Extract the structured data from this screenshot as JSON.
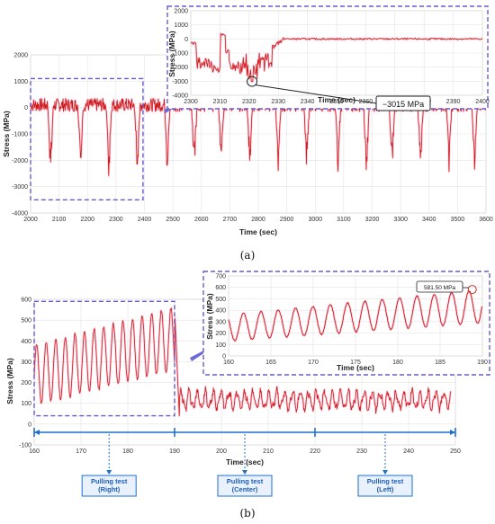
{
  "chart_data": [
    {
      "id": "a",
      "type": "line",
      "panel_label": "(a)",
      "xlabel": "Time (sec)",
      "ylabel": "Stress (MPa)",
      "xlim": [
        2000,
        3600
      ],
      "ylim": [
        -4000,
        2000
      ],
      "x_ticks": [
        "2000",
        "2100",
        "2200",
        "2300",
        "2400",
        "2500",
        "2600",
        "2700",
        "2800",
        "2900",
        "3000",
        "3100",
        "3200",
        "3300",
        "3400",
        "3500",
        "3600"
      ],
      "y_ticks": [
        "2000",
        "1000",
        "0",
        "-1000",
        "-2000",
        "-3000",
        "-4000"
      ],
      "grid": true,
      "series": [
        {
          "baseline": 100,
          "events": [
            {
              "x": 2070,
              "min": -2900
            },
            {
              "x": 2175,
              "min": -2700
            },
            {
              "x": 2275,
              "min": -2950
            },
            {
              "x": 2375,
              "min": -2850
            },
            {
              "x": 2480,
              "min": -2800
            },
            {
              "x": 2575,
              "min": -2600
            },
            {
              "x": 2670,
              "min": -2450
            },
            {
              "x": 2770,
              "min": -2550
            },
            {
              "x": 2870,
              "min": -2650
            },
            {
              "x": 2970,
              "min": -2500
            },
            {
              "x": 3080,
              "min": -2600
            },
            {
              "x": 3180,
              "min": -3015
            },
            {
              "x": 3270,
              "min": -2550
            },
            {
              "x": 3370,
              "min": -2450
            },
            {
              "x": 3470,
              "min": -2500
            },
            {
              "x": 3560,
              "min": -2550
            }
          ]
        }
      ],
      "inset": {
        "xlabel": "Time (sec)",
        "ylabel": "Stress (MPa)",
        "xlim": [
          2300,
          2400
        ],
        "ylim": [
          -4000,
          2000
        ],
        "x_ticks": [
          "2300",
          "2310",
          "2320",
          "2330",
          "2340",
          "2350",
          "2360",
          "2370",
          "2380",
          "2390",
          "2400"
        ],
        "y_ticks": [
          "2000",
          "1000",
          "0",
          "-1000",
          "-2000",
          "-3000",
          "-4000"
        ],
        "annotation": "−3015 MPa",
        "annotation_point": {
          "x": 2321,
          "y": -3015
        }
      }
    },
    {
      "id": "b",
      "type": "line",
      "panel_label": "(b)",
      "xlabel": "Time (sec)",
      "ylabel": "Stress (MPa)",
      "xlim": [
        160,
        250
      ],
      "ylim": [
        -100,
        600
      ],
      "x_ticks": [
        "160",
        "170",
        "180",
        "190",
        "200",
        "210",
        "220",
        "230",
        "240",
        "250"
      ],
      "y_ticks": [
        "600",
        "500",
        "400",
        "300",
        "200",
        "100",
        "0",
        "-100"
      ],
      "grid": true,
      "series": [
        {
          "segments": [
            {
              "range": [
                160,
                190
              ],
              "type": "rising-oscillation",
              "trough": [
                90,
                260
              ],
              "peak": [
                380,
                560
              ]
            },
            {
              "range": [
                191,
                249
              ],
              "type": "oscillation",
              "trough": [
                60,
                90
              ],
              "peak": [
                130,
                230
              ]
            }
          ]
        }
      ],
      "inset": {
        "xlabel": "Time (sec)",
        "ylabel": "Stress (MPa)",
        "xlim": [
          160,
          190
        ],
        "ylim": [
          0,
          700
        ],
        "x_ticks": [
          "160",
          "165",
          "170",
          "175",
          "180",
          "185",
          "190"
        ],
        "y_ticks": [
          "700",
          "600",
          "500",
          "400",
          "300",
          "200",
          "100",
          "0"
        ],
        "annotation": "581.50 MPa",
        "annotation_point": {
          "x": 188.8,
          "y": 581.5
        }
      },
      "markers": [
        {
          "label": "Pulling test\n(Right)",
          "x": 176
        },
        {
          "label": "Pulling test\n(Center)",
          "x": 205
        },
        {
          "label": "Pulling test\n(Left)",
          "x": 235
        }
      ],
      "timeline_ticks": [
        160,
        190,
        220,
        250
      ]
    }
  ]
}
